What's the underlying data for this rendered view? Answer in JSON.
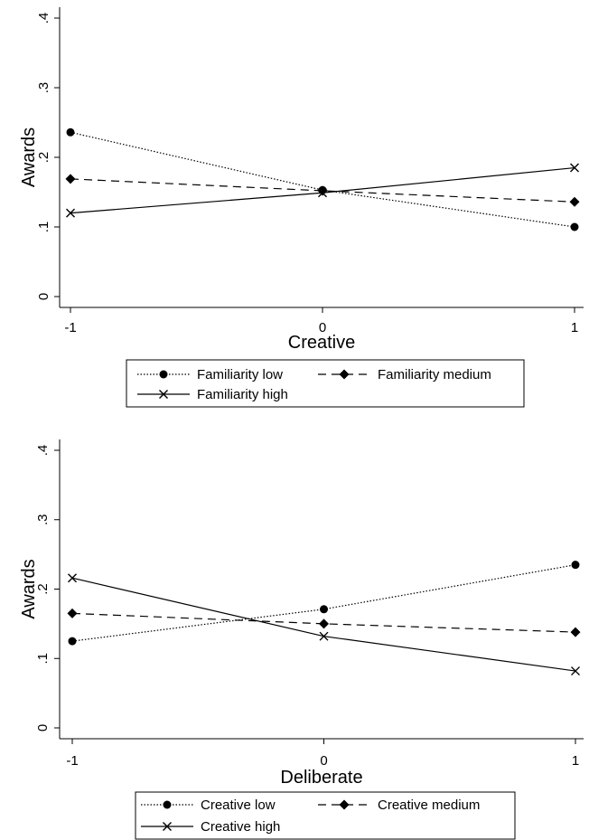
{
  "chart_data": [
    {
      "type": "line",
      "xlabel": "Creative",
      "ylabel": "Awards",
      "x": [
        -1,
        0,
        1
      ],
      "xticks": [
        "-1",
        "0",
        "1"
      ],
      "yticks": [
        "0",
        ".1",
        ".2",
        ".3",
        ".4"
      ],
      "xlim": [
        -1,
        1
      ],
      "ylim": [
        0,
        0.4
      ],
      "grid": false,
      "legend_position": "bottom",
      "series": [
        {
          "name": "Familiarity low",
          "values": [
            0.236,
            0.153,
            0.1
          ],
          "marker": "circle",
          "line_style": "dotted"
        },
        {
          "name": "Familiarity medium",
          "values": [
            0.169,
            0.152,
            0.136
          ],
          "marker": "diamond",
          "line_style": "dashed"
        },
        {
          "name": "Familiarity high",
          "values": [
            0.12,
            0.149,
            0.185
          ],
          "marker": "x",
          "line_style": "solid"
        }
      ]
    },
    {
      "type": "line",
      "xlabel": "Deliberate",
      "ylabel": "Awards",
      "x": [
        -1,
        0,
        1
      ],
      "xticks": [
        "-1",
        "0",
        "1"
      ],
      "yticks": [
        "0",
        ".1",
        ".2",
        ".3",
        ".4"
      ],
      "xlim": [
        -1,
        1
      ],
      "ylim": [
        0,
        0.4
      ],
      "grid": false,
      "legend_position": "bottom",
      "series": [
        {
          "name": "Creative low",
          "values": [
            0.125,
            0.171,
            0.235
          ],
          "marker": "circle",
          "line_style": "dotted"
        },
        {
          "name": "Creative medium",
          "values": [
            0.165,
            0.15,
            0.138
          ],
          "marker": "diamond",
          "line_style": "dashed"
        },
        {
          "name": "Creative high",
          "values": [
            0.216,
            0.132,
            0.082
          ],
          "marker": "x",
          "line_style": "solid"
        }
      ]
    }
  ]
}
